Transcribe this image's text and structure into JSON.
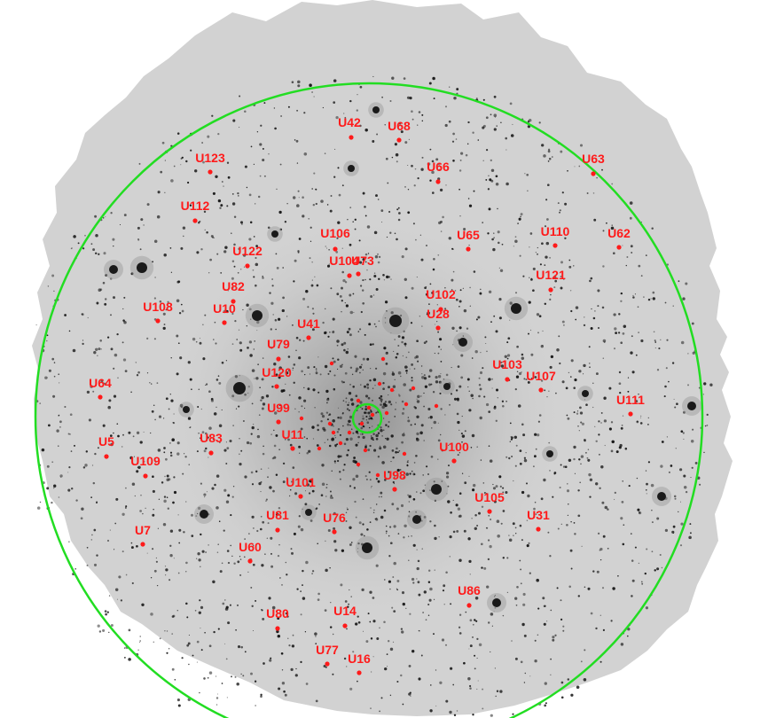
{
  "image": {
    "description_type": "astronomical cluster field",
    "colors": {
      "background": "#ffffff",
      "field": "#cfcfcf",
      "stars": "#111111",
      "labels": "#ff1a1a",
      "circles": "#22dd22"
    }
  },
  "sources": [
    {
      "label": "U42"
    },
    {
      "label": "U68"
    },
    {
      "label": "U66"
    },
    {
      "label": "U63"
    },
    {
      "label": "U123"
    },
    {
      "label": "U112"
    },
    {
      "label": "U106"
    },
    {
      "label": "U65"
    },
    {
      "label": "U110"
    },
    {
      "label": "U62"
    },
    {
      "label": "U122"
    },
    {
      "label": "U104"
    },
    {
      "label": "U73"
    },
    {
      "label": "U121"
    },
    {
      "label": "U82"
    },
    {
      "label": "U102"
    },
    {
      "label": "U108"
    },
    {
      "label": "U10"
    },
    {
      "label": "U28"
    },
    {
      "label": "U41"
    },
    {
      "label": "U79"
    },
    {
      "label": "U103"
    },
    {
      "label": "U64"
    },
    {
      "label": "U120"
    },
    {
      "label": "U107"
    },
    {
      "label": "U111"
    },
    {
      "label": "U99"
    },
    {
      "label": "U11"
    },
    {
      "label": "U5"
    },
    {
      "label": "U83"
    },
    {
      "label": "U100"
    },
    {
      "label": "U109"
    },
    {
      "label": "U98"
    },
    {
      "label": "U101"
    },
    {
      "label": "U105"
    },
    {
      "label": "U81"
    },
    {
      "label": "U76"
    },
    {
      "label": "U31"
    },
    {
      "label": "U7"
    },
    {
      "label": "U60"
    },
    {
      "label": "U86"
    },
    {
      "label": "U80"
    },
    {
      "label": "U14"
    },
    {
      "label": "U77"
    },
    {
      "label": "U16"
    }
  ]
}
